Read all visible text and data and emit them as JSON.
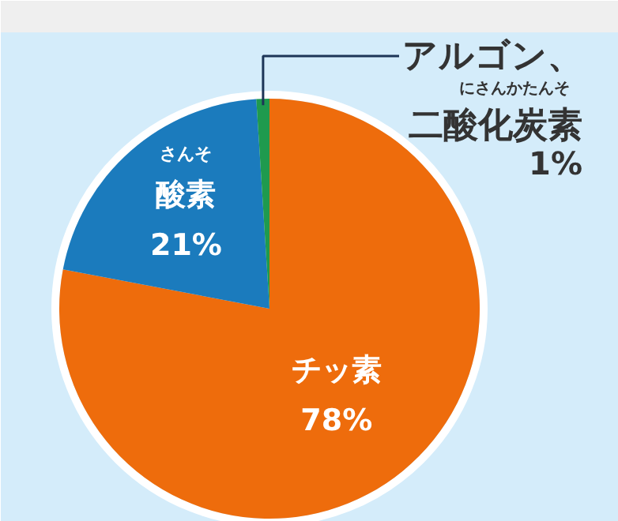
{
  "chart_data": {
    "type": "pie",
    "categories": [
      "チッ素",
      "酸素",
      "アルゴン、二酸化炭素"
    ],
    "values": [
      78,
      21,
      1
    ],
    "colors": [
      "#ee6c0c",
      "#1b7bbd",
      "#1f9a4e"
    ],
    "value_labels": [
      "78%",
      "21%",
      "1%"
    ],
    "annotations": [
      "さんそ",
      "にさんかたんそ"
    ]
  }
}
